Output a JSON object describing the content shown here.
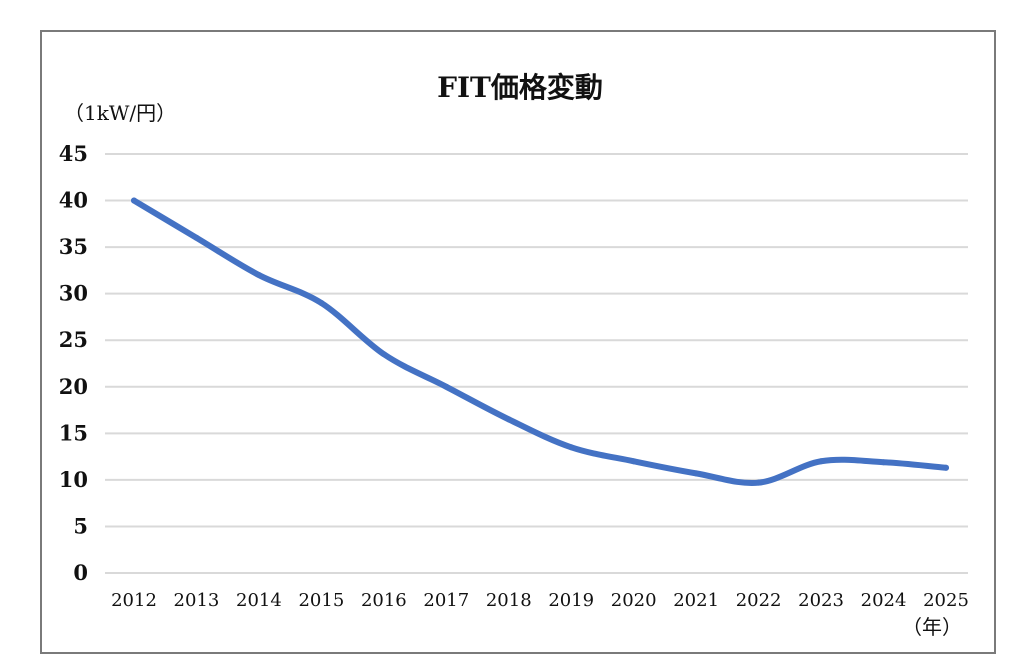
{
  "chart_data": {
    "type": "line",
    "title": "FIT価格変動",
    "ylabel": "（1kW/円）",
    "xlabel": "（年）",
    "categories": [
      "2012",
      "2013",
      "2014",
      "2015",
      "2016",
      "2017",
      "2018",
      "2019",
      "2020",
      "2021",
      "2022",
      "2023",
      "2024",
      "2025"
    ],
    "series": [
      {
        "values": [
          40,
          36,
          32,
          29,
          23.5,
          20,
          16.5,
          13.5,
          12,
          10.7,
          9.7,
          12,
          11.9,
          11.3
        ]
      }
    ],
    "ylim": [
      0,
      45
    ],
    "yticks": [
      0,
      5,
      10,
      15,
      20,
      25,
      30,
      35,
      40,
      45
    ],
    "grid": true,
    "legend": "none",
    "line_color": "#4472c4",
    "grid_color": "#d9d9d9"
  }
}
